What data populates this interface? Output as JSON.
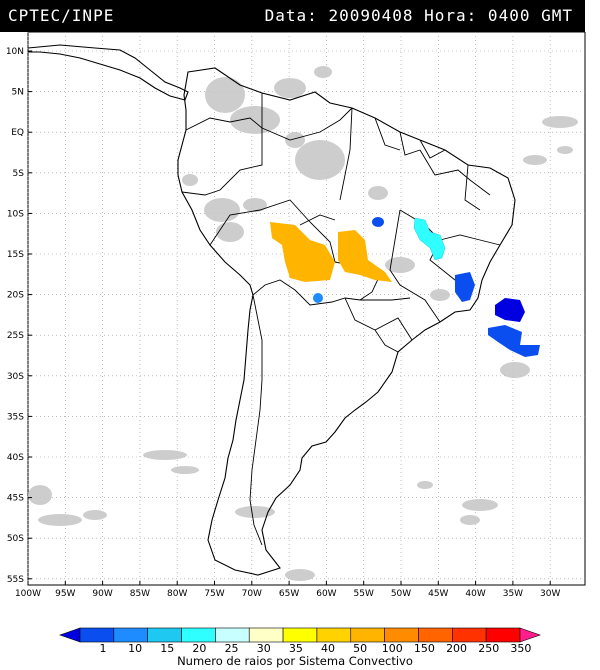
{
  "header": {
    "source": "CPTEC/INPE",
    "datetime": "Data: 20090408 Hora: 0400 GMT"
  },
  "map": {
    "lat_labels": [
      "10N",
      "5N",
      "EQ",
      "5S",
      "10S",
      "15S",
      "20S",
      "25S",
      "30S",
      "35S",
      "40S",
      "45S",
      "50S",
      "55S"
    ],
    "lon_labels": [
      "100W",
      "95W",
      "90W",
      "85W",
      "80W",
      "75W",
      "70W",
      "65W",
      "60W",
      "55W",
      "50W",
      "45W",
      "40W",
      "35W",
      "30W"
    ]
  },
  "legend": {
    "values": [
      "1",
      "10",
      "15",
      "20",
      "25",
      "30",
      "35",
      "40",
      "50",
      "100",
      "150",
      "200",
      "250",
      "350"
    ],
    "title": "Numero de raios por Sistema Convectivo",
    "colors": [
      "#0000e0",
      "#0a4ef0",
      "#1e8cff",
      "#1ec8f0",
      "#30ffff",
      "#c8ffff",
      "#ffffc8",
      "#ffff00",
      "#ffd200",
      "#ffb400",
      "#ff8c00",
      "#ff6400",
      "#ff3200",
      "#ff0000",
      "#ff1e8c"
    ]
  }
}
